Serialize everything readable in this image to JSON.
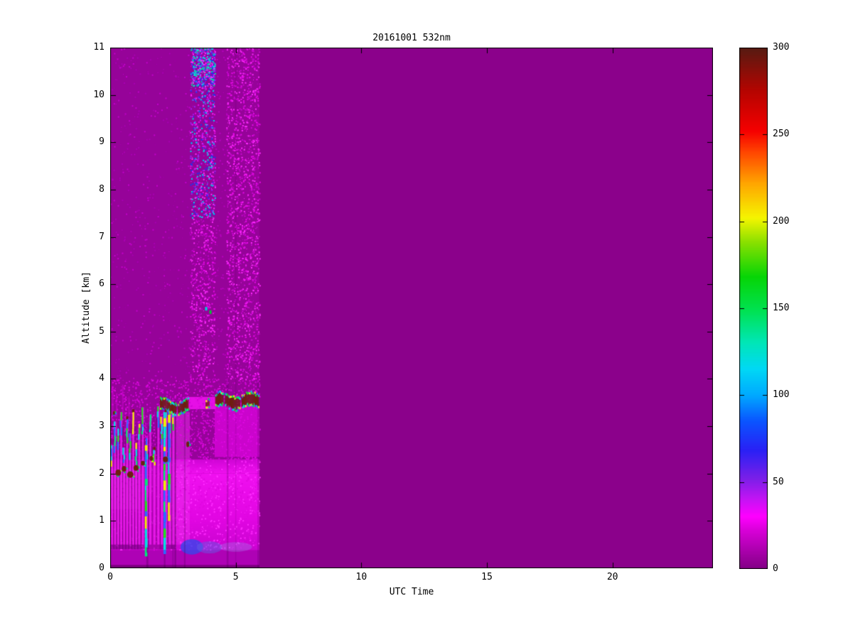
{
  "chart_data": {
    "type": "heatmap",
    "title": "20161001 532nm",
    "xlabel": "UTC Time",
    "ylabel": "Altitude [km]",
    "xlim": [
      0,
      24
    ],
    "ylim": [
      0,
      11
    ],
    "xticks": [
      0,
      5,
      10,
      15,
      20
    ],
    "yticks": [
      0,
      1,
      2,
      3,
      4,
      5,
      6,
      7,
      8,
      9,
      10,
      11
    ],
    "grid": false,
    "legend": "none",
    "colorbar": {
      "min": 0,
      "max": 300,
      "ticks": [
        0,
        50,
        100,
        150,
        200,
        250,
        300
      ],
      "position": "right",
      "stops": [
        [
          0,
          "#830086"
        ],
        [
          22,
          "#d800d8"
        ],
        [
          30,
          "#ff00ff"
        ],
        [
          40,
          "#c414f4"
        ],
        [
          52,
          "#7a1fe8"
        ],
        [
          68,
          "#2a20f5"
        ],
        [
          85,
          "#0a55ff"
        ],
        [
          100,
          "#00aaff"
        ],
        [
          115,
          "#00d8f5"
        ],
        [
          130,
          "#00e6b8"
        ],
        [
          148,
          "#00e255"
        ],
        [
          168,
          "#06d506"
        ],
        [
          188,
          "#8ae000"
        ],
        [
          202,
          "#f5f500"
        ],
        [
          222,
          "#ffa500"
        ],
        [
          240,
          "#ff4500"
        ],
        [
          252,
          "#f60000"
        ],
        [
          275,
          "#b60400"
        ],
        [
          300,
          "#571b12"
        ]
      ]
    },
    "no_data_color": "#8b018b",
    "data_coverage_utc": [
      0,
      5.94
    ],
    "features": {
      "base_color": "#960399",
      "palette": {
        "maroon": "#6e1f10",
        "plume_body": "#fa1efa",
        "fringe": [
          "#00e0e0",
          "#22dd22",
          "#eef000",
          "#2a6bff",
          "#00e878"
        ]
      },
      "boundary_bands": [
        {
          "t": [
            0,
            5.94
          ],
          "alt": [
            0,
            0.07
          ],
          "color": "#79017d"
        },
        {
          "t": [
            0,
            5.94
          ],
          "alt": [
            0.07,
            0.38
          ],
          "color": "#ae02b5"
        },
        {
          "t": [
            0,
            5.94
          ],
          "alt": [
            0.38,
            1.05
          ],
          "grad": [
            "#c804cf",
            "#e206e3"
          ]
        },
        {
          "t": [
            0,
            5.94
          ],
          "alt": [
            1.05,
            2.0
          ],
          "grad": [
            "#e206e3",
            "#f010f0"
          ]
        },
        {
          "t": [
            0,
            5.94
          ],
          "alt": [
            2.0,
            2.3
          ],
          "grad": [
            "#f010f0",
            "#cf05d5"
          ]
        }
      ],
      "bright_patches": [
        {
          "t": [
            0,
            1.15
          ],
          "alt": [
            1.25,
            2.1
          ],
          "color": "#fb2bfb",
          "a": 0.85
        },
        {
          "t": [
            2.3,
            3.17
          ],
          "alt": [
            0.5,
            3.3
          ],
          "color": "#e92fe9",
          "a": 0.5
        },
        {
          "t": [
            4.16,
            5.94
          ],
          "alt": [
            2.35,
            3.44
          ],
          "color": "#db05de",
          "a": 0.75
        },
        {
          "t": [
            3.0,
            4.2
          ],
          "alt": [
            3.36,
            3.62
          ],
          "color": "#ee11ee",
          "a": 0.9
        },
        {
          "t": [
            1.3,
            2.0
          ],
          "alt": [
            0.4,
            1.1
          ],
          "color": "#e90ae9",
          "a": 0.5
        }
      ],
      "speckle_regions": [
        {
          "t": [
            0,
            3.17
          ],
          "alt": [
            4,
            11
          ],
          "density": 0.035,
          "colors": [
            "#a802b2",
            "#c303cb"
          ]
        },
        {
          "t": [
            3.17,
            4.16
          ],
          "alt": [
            7.4,
            11
          ],
          "density": 0.42,
          "colors": [
            "#e80ae8",
            "#a020f0",
            "#2233ee",
            "#00d9e9",
            "#ff2cff"
          ]
        },
        {
          "t": [
            3.17,
            4.16
          ],
          "alt": [
            4,
            7.4
          ],
          "density": 0.3,
          "colors": [
            "#e80ae8",
            "#c004cc",
            "#ff2cff"
          ]
        },
        {
          "t": [
            3.2,
            4.16
          ],
          "alt": [
            10.2,
            11
          ],
          "density": 0.8,
          "colors": [
            "#ff2cff",
            "#2d2df0",
            "#00e5e5",
            "#7722ee",
            "#00e39a"
          ]
        },
        {
          "t": [
            4.16,
            4.62
          ],
          "alt": [
            4,
            11
          ],
          "density": 0.05,
          "colors": [
            "#b803c0"
          ]
        },
        {
          "t": [
            4.62,
            5.94
          ],
          "alt": [
            4,
            11
          ],
          "density": 0.3,
          "colors": [
            "#e80ae8",
            "#c707d0",
            "#ff2cff"
          ]
        },
        {
          "t": [
            0,
            5.94
          ],
          "alt": [
            2.3,
            4
          ],
          "density": 0.25,
          "colors": [
            "#e00ae2",
            "#cf05d5"
          ]
        },
        {
          "t": [
            0,
            5.94
          ],
          "alt": [
            0.4,
            2.3
          ],
          "density": 0.2,
          "colors": [
            "#ff2cff",
            "#e007e0"
          ]
        }
      ],
      "blue_patches": [
        {
          "cx": 3.25,
          "cy": 0.45,
          "rx": 0.45,
          "ry": 0.16,
          "color": "rgba(55,70,235,0.8)"
        },
        {
          "cx": 3.95,
          "cy": 0.44,
          "rx": 0.5,
          "ry": 0.13,
          "color": "rgba(100,90,230,0.5)"
        },
        {
          "cx": 5.0,
          "cy": 0.45,
          "rx": 0.65,
          "ry": 0.1,
          "color": "rgba(160,130,235,0.35)"
        }
      ],
      "dark_columns": [
        {
          "t": [
            2.56,
            2.63
          ],
          "alt": [
            0,
            3.3
          ],
          "a": 0.25
        },
        {
          "t": [
            2.94,
            3.0
          ],
          "alt": [
            0,
            3.3
          ],
          "a": 0.2
        },
        {
          "t": [
            4.64,
            4.71
          ],
          "alt": [
            0,
            4
          ],
          "a": 0.18
        },
        {
          "t": [
            4.98,
            5.02
          ],
          "alt": [
            0,
            11
          ],
          "a": 0.1
        },
        {
          "t": [
            2.48,
            2.52
          ],
          "alt": [
            0,
            1.0
          ],
          "a": 0.2
        },
        {
          "t": [
            1.44,
            1.52
          ],
          "alt": [
            0,
            1.5
          ],
          "a": 0.25
        },
        {
          "t": [
            2.14,
            2.2
          ],
          "alt": [
            0,
            1.0
          ],
          "a": 0.25
        },
        {
          "t": [
            5.86,
            5.94
          ],
          "alt": [
            0,
            4
          ],
          "a": 0.15
        }
      ],
      "plumes": [
        {
          "t": 0.08,
          "top": 2.6,
          "w": 0.09
        },
        {
          "t": 0.2,
          "top": 3.1,
          "w": 0.09
        },
        {
          "t": 0.32,
          "top": 2.95,
          "w": 0.09
        },
        {
          "t": 0.44,
          "top": 3.3,
          "w": 0.09
        },
        {
          "t": 0.56,
          "top": 2.55,
          "w": 0.09
        },
        {
          "t": 0.68,
          "top": 3.15,
          "w": 0.09
        },
        {
          "t": 0.8,
          "top": 2.85,
          "w": 0.09
        },
        {
          "t": 0.92,
          "top": 3.3,
          "w": 0.09
        },
        {
          "t": 1.04,
          "top": 2.65,
          "w": 0.09
        },
        {
          "t": 1.16,
          "top": 3.05,
          "w": 0.09
        },
        {
          "t": 1.3,
          "top": 3.4,
          "w": 0.09
        },
        {
          "t": 1.46,
          "top": 2.75,
          "w": 0.09
        },
        {
          "t": 1.6,
          "top": 3.25,
          "w": 0.09
        },
        {
          "t": 1.76,
          "top": 2.5,
          "w": 0.09
        },
        {
          "t": 1.92,
          "top": 3.42,
          "w": 0.09
        },
        {
          "t": 2.06,
          "top": 3.2,
          "w": 0.09
        },
        {
          "t": 2.22,
          "top": 3.3,
          "w": 0.09
        },
        {
          "t": 2.38,
          "top": 3.42,
          "w": 0.09
        },
        {
          "t": 2.52,
          "top": 3.45,
          "w": 0.09
        },
        {
          "t": 0.1,
          "top": 3.85,
          "w": 0.05,
          "faint": true
        },
        {
          "t": 0.26,
          "top": 3.7,
          "w": 0.05,
          "faint": true
        },
        {
          "t": 0.5,
          "top": 3.88,
          "w": 0.05,
          "faint": true
        },
        {
          "t": 0.75,
          "top": 3.6,
          "w": 0.05,
          "faint": true
        }
      ],
      "cyan_streaks": [
        {
          "t": 1.38,
          "alt": [
            0.25,
            2.6
          ]
        },
        {
          "t": 2.12,
          "alt": [
            0.3,
            3.3
          ]
        },
        {
          "t": 2.3,
          "alt": [
            1.0,
            3.35
          ]
        }
      ],
      "maroon_blobs": [
        {
          "t": 0.32,
          "alt": 2.02,
          "w": 0.22,
          "h": 0.13
        },
        {
          "t": 0.55,
          "alt": 2.1,
          "w": 0.18,
          "h": 0.12
        },
        {
          "t": 0.8,
          "alt": 1.98,
          "w": 0.25,
          "h": 0.14
        },
        {
          "t": 1.03,
          "alt": 2.12,
          "w": 0.2,
          "h": 0.12
        },
        {
          "t": 1.3,
          "alt": 2.22,
          "w": 0.16,
          "h": 0.1
        },
        {
          "t": 1.64,
          "alt": 2.32,
          "w": 0.14,
          "h": 0.1
        },
        {
          "t": 2.2,
          "alt": 2.3,
          "w": 0.2,
          "h": 0.12
        },
        {
          "t": 3.09,
          "alt": 2.62,
          "w": 0.12,
          "h": 0.12
        },
        {
          "t": 0.15,
          "alt": 3.28,
          "w": 0.08,
          "h": 0.08
        }
      ],
      "cloud_bands": [
        {
          "t": [
            1.98,
            3.1
          ],
          "center": 3.42,
          "amp": 0.07,
          "thick": 0.16,
          "gaps": [
            [
              2.62,
              2.68
            ]
          ]
        },
        {
          "t": [
            4.18,
            5.92
          ],
          "center": 3.53,
          "amp": 0.05,
          "thick": 0.2,
          "gaps": [
            [
              4.5,
              4.57
            ],
            [
              5.17,
              5.23
            ]
          ]
        },
        {
          "t": [
            3.8,
            3.92
          ],
          "center": 3.5,
          "amp": 0.02,
          "thick": 0.09,
          "gaps": []
        }
      ],
      "specks": [
        {
          "t": 3.95,
          "alt": 5.45,
          "color": "#00c832"
        },
        {
          "t": 3.78,
          "alt": 5.52,
          "color": "#00d2dc"
        }
      ]
    }
  }
}
